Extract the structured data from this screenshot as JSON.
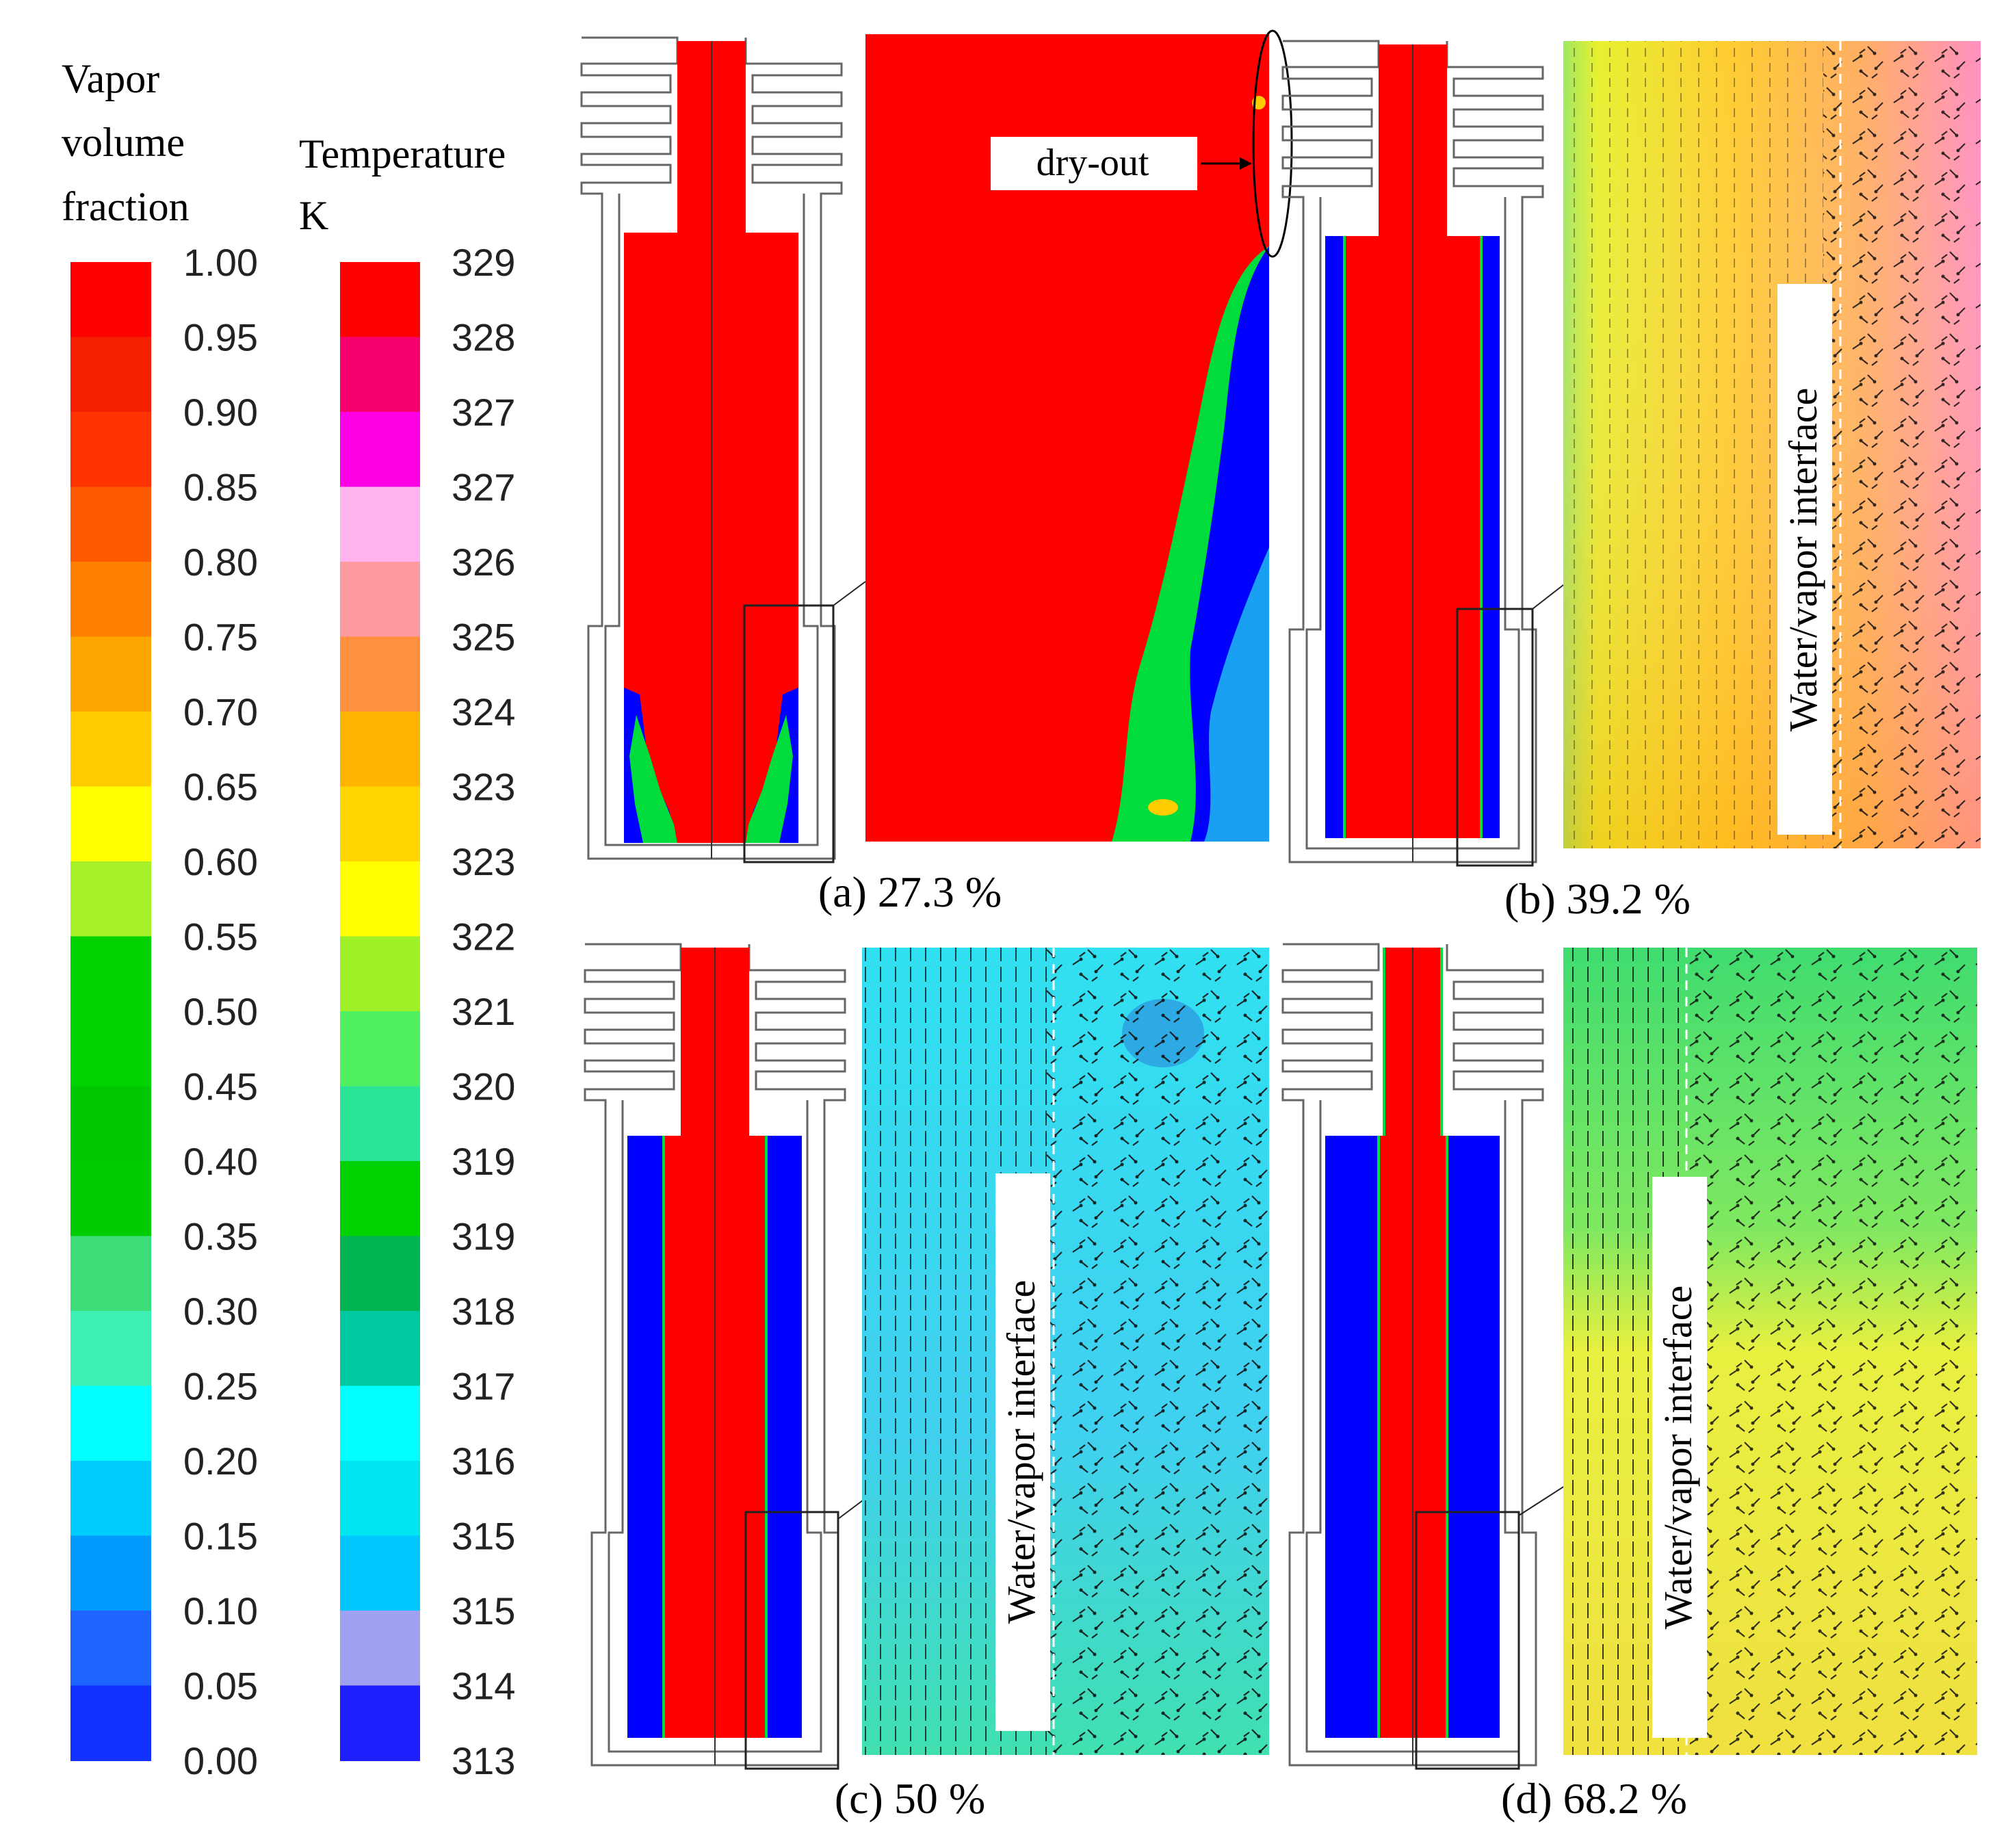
{
  "vapor_legend": {
    "title_lines": [
      "Vapor",
      "volume",
      "fraction"
    ],
    "labels": [
      "1.00",
      "0.95",
      "0.90",
      "0.85",
      "0.80",
      "0.75",
      "0.70",
      "0.65",
      "0.60",
      "0.55",
      "0.50",
      "0.45",
      "0.40",
      "0.35",
      "0.30",
      "0.25",
      "0.20",
      "0.15",
      "0.10",
      "0.05",
      "0.00"
    ],
    "colors": [
      "#ff0000",
      "#f41e00",
      "#ff3300",
      "#ff5a00",
      "#ff7f00",
      "#ffa500",
      "#ffcc00",
      "#ffff00",
      "#a6f028",
      "#00d200",
      "#00d200",
      "#00c800",
      "#00cc00",
      "#3cdc78",
      "#3cf0b4",
      "#00ffff",
      "#00ccff",
      "#0099ff",
      "#1e64ff",
      "#1432ff",
      "#0000ff"
    ]
  },
  "temp_legend": {
    "title_lines": [
      "Temperature",
      "K"
    ],
    "labels": [
      "329",
      "328",
      "327",
      "327",
      "326",
      "325",
      "324",
      "323",
      "323",
      "322",
      "321",
      "320",
      "319",
      "319",
      "318",
      "317",
      "316",
      "315",
      "315",
      "314",
      "313"
    ],
    "colors": [
      "#ff0000",
      "#f5006e",
      "#ff00e6",
      "#ffb4f0",
      "#ff9aa0",
      "#ff9040",
      "#ffb400",
      "#ffd400",
      "#ffff00",
      "#a0f028",
      "#50f060",
      "#28e696",
      "#00d200",
      "#00b450",
      "#00c8a0",
      "#00ffff",
      "#00e6f0",
      "#00c8ff",
      "#a0a0f0",
      "#1e1eff",
      "#1e1eff"
    ]
  },
  "panels": [
    {
      "caption": "(a) 27.3 %",
      "annotation": "dry-out"
    },
    {
      "caption": "(b) 39.2 %",
      "annotation": "Water/vapor interface"
    },
    {
      "caption": "(c) 50 %",
      "annotation": "Water/vapor interface"
    },
    {
      "caption": "(d) 68.2 %",
      "annotation": "Water/vapor interface"
    }
  ],
  "colors": {
    "vapor": "#ff0000",
    "water": "#0000ff",
    "mixed": "#00dc3c",
    "panel_b_bg": "#ffc030",
    "panel_c_bg": "#40d8f0",
    "panel_d_bg": "#e0e840"
  }
}
